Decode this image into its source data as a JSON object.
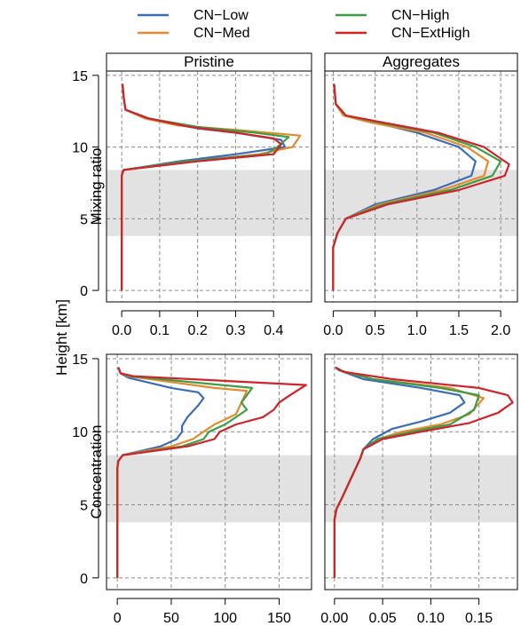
{
  "legend": {
    "position": "top",
    "items": [
      {
        "label": "CN−Low",
        "color": "#3A6DB5"
      },
      {
        "label": "CN−High",
        "color": "#3D9D46"
      },
      {
        "label": "CN−Med",
        "color": "#E58A2E"
      },
      {
        "label": "CN−ExtHigh",
        "color": "#D0232A"
      }
    ]
  },
  "y_axis_label": "Height [km]",
  "column_titles": [
    "Pristine",
    "Aggregates"
  ],
  "row_titles": [
    "Mixing ratio",
    "Concentration"
  ],
  "shaded_band_km": [
    3.8,
    8.4
  ],
  "chart_data": [
    {
      "type": "line",
      "panel": "mixing-ratio-pristine",
      "ylim": [
        -0.8,
        15.3
      ],
      "yticks": [
        "0",
        "5",
        "10",
        "15"
      ],
      "xlim": [
        -0.04,
        0.5
      ],
      "xticks": [
        "0.0",
        "0.1",
        "0.2",
        "0.3",
        "0.4"
      ],
      "xtick_values": [
        0,
        0.1,
        0.2,
        0.3,
        0.4
      ],
      "x_axis_drawn": true,
      "series": [
        {
          "name": "CN−Low",
          "color": "#3A6DB5",
          "points": [
            [
              0,
              0
            ],
            [
              0,
              8
            ],
            [
              0.005,
              8.4
            ],
            [
              0.15,
              9
            ],
            [
              0.3,
              9.5
            ],
            [
              0.43,
              10
            ],
            [
              0.42,
              10.5
            ],
            [
              0.3,
              11
            ],
            [
              0.2,
              11.3
            ],
            [
              0.07,
              12
            ],
            [
              0.01,
              12.6
            ],
            [
              0.005,
              13.5
            ],
            [
              0.002,
              14.4
            ]
          ]
        },
        {
          "name": "CN−Med",
          "color": "#E58A2E",
          "points": [
            [
              0,
              0
            ],
            [
              0,
              8
            ],
            [
              0.005,
              8.4
            ],
            [
              0.18,
              9
            ],
            [
              0.36,
              9.5
            ],
            [
              0.45,
              10
            ],
            [
              0.47,
              10.8
            ],
            [
              0.3,
              11.2
            ],
            [
              0.15,
              11.5
            ],
            [
              0.06,
              12
            ],
            [
              0.01,
              12.6
            ],
            [
              0.005,
              13.5
            ],
            [
              0.002,
              14.4
            ]
          ]
        },
        {
          "name": "CN−High",
          "color": "#3D9D46",
          "points": [
            [
              0,
              0
            ],
            [
              0,
              8
            ],
            [
              0.005,
              8.4
            ],
            [
              0.17,
              9
            ],
            [
              0.38,
              9.5
            ],
            [
              0.41,
              10
            ],
            [
              0.44,
              10.7
            ],
            [
              0.35,
              11
            ],
            [
              0.2,
              11.4
            ],
            [
              0.07,
              12
            ],
            [
              0.01,
              12.6
            ],
            [
              0.005,
              13.5
            ],
            [
              0.002,
              14.4
            ]
          ]
        },
        {
          "name": "CN−ExtHigh",
          "color": "#D0232A",
          "points": [
            [
              0,
              0
            ],
            [
              0,
              8
            ],
            [
              0.005,
              8.4
            ],
            [
              0.2,
              9
            ],
            [
              0.4,
              9.5
            ],
            [
              0.42,
              10.2
            ],
            [
              0.4,
              10.6
            ],
            [
              0.3,
              11
            ],
            [
              0.18,
              11.4
            ],
            [
              0.07,
              12
            ],
            [
              0.01,
              12.6
            ],
            [
              0.005,
              13.5
            ],
            [
              0.002,
              14.4
            ]
          ]
        }
      ]
    },
    {
      "type": "line",
      "panel": "mixing-ratio-aggregates",
      "ylim": [
        -0.8,
        15.3
      ],
      "xlim": [
        -0.1,
        2.2
      ],
      "xticks": [
        "0.0",
        "0.5",
        "1.0",
        "1.5",
        "2.0"
      ],
      "xtick_values": [
        0,
        0.5,
        1,
        1.5,
        2
      ],
      "x_axis_drawn": true,
      "series": [
        {
          "name": "CN−Low",
          "color": "#3A6DB5",
          "points": [
            [
              0,
              0
            ],
            [
              0,
              3
            ],
            [
              0.05,
              4
            ],
            [
              0.15,
              5
            ],
            [
              0.5,
              6
            ],
            [
              1.2,
              7
            ],
            [
              1.65,
              8
            ],
            [
              1.7,
              9
            ],
            [
              1.5,
              10
            ],
            [
              1,
              11
            ],
            [
              0.5,
              11.7
            ],
            [
              0.15,
              12.2
            ],
            [
              0.03,
              13
            ],
            [
              0.01,
              14.4
            ]
          ]
        },
        {
          "name": "CN−Med",
          "color": "#E58A2E",
          "points": [
            [
              0,
              0
            ],
            [
              0,
              3
            ],
            [
              0.05,
              4
            ],
            [
              0.15,
              5
            ],
            [
              0.55,
              6
            ],
            [
              1.3,
              7
            ],
            [
              1.8,
              8
            ],
            [
              1.85,
              9
            ],
            [
              1.6,
              10
            ],
            [
              1.1,
              11
            ],
            [
              0.45,
              11.7
            ],
            [
              0.12,
              12.2
            ],
            [
              0.03,
              13
            ],
            [
              0.01,
              14.4
            ]
          ]
        },
        {
          "name": "CN−High",
          "color": "#3D9D46",
          "points": [
            [
              0,
              0
            ],
            [
              0,
              3
            ],
            [
              0.05,
              4
            ],
            [
              0.15,
              5
            ],
            [
              0.6,
              6
            ],
            [
              1.4,
              7
            ],
            [
              1.9,
              8
            ],
            [
              2,
              9
            ],
            [
              1.7,
              10
            ],
            [
              1.2,
              11
            ],
            [
              0.55,
              11.7
            ],
            [
              0.15,
              12.2
            ],
            [
              0.03,
              13
            ],
            [
              0.01,
              14.4
            ]
          ]
        },
        {
          "name": "CN−ExtHigh",
          "color": "#D0232A",
          "points": [
            [
              0,
              0
            ],
            [
              0,
              3
            ],
            [
              0.05,
              4
            ],
            [
              0.15,
              5
            ],
            [
              0.65,
              6
            ],
            [
              1.5,
              7
            ],
            [
              2.05,
              8
            ],
            [
              2.1,
              8.8
            ],
            [
              1.8,
              10
            ],
            [
              1.25,
              11
            ],
            [
              0.6,
              11.7
            ],
            [
              0.15,
              12.2
            ],
            [
              0.03,
              13
            ],
            [
              0.01,
              14.4
            ]
          ]
        }
      ]
    },
    {
      "type": "line",
      "panel": "concentration-pristine",
      "ylim": [
        -0.8,
        15.3
      ],
      "yticks": [
        "0",
        "5",
        "10",
        "15"
      ],
      "xlim": [
        -10,
        180
      ],
      "xticks": [
        "0",
        "50",
        "100",
        "150"
      ],
      "xtick_values": [
        0,
        50,
        100,
        150
      ],
      "x_axis_drawn": true,
      "series": [
        {
          "name": "CN−Low",
          "color": "#3A6DB5",
          "points": [
            [
              0,
              0
            ],
            [
              0,
              7.5
            ],
            [
              1,
              8
            ],
            [
              5,
              8.4
            ],
            [
              40,
              9
            ],
            [
              55,
              9.5
            ],
            [
              60,
              10
            ],
            [
              60,
              10.4
            ],
            [
              65,
              11
            ],
            [
              75,
              11.8
            ],
            [
              80,
              12.3
            ],
            [
              75,
              12.7
            ],
            [
              50,
              13
            ],
            [
              10,
              13.7
            ],
            [
              3,
              14
            ],
            [
              1,
              14.4
            ]
          ]
        },
        {
          "name": "CN−Med",
          "color": "#E58A2E",
          "points": [
            [
              0,
              0
            ],
            [
              0,
              7.5
            ],
            [
              1,
              8
            ],
            [
              5,
              8.4
            ],
            [
              50,
              9
            ],
            [
              70,
              9.5
            ],
            [
              80,
              10
            ],
            [
              90,
              10.5
            ],
            [
              110,
              11.2
            ],
            [
              115,
              12
            ],
            [
              120,
              12.8
            ],
            [
              90,
              13
            ],
            [
              10,
              13.8
            ],
            [
              3,
              14
            ],
            [
              1,
              14.4
            ]
          ]
        },
        {
          "name": "CN−High",
          "color": "#3D9D46",
          "points": [
            [
              0,
              0
            ],
            [
              0,
              7.5
            ],
            [
              1,
              8
            ],
            [
              5,
              8.4
            ],
            [
              60,
              9
            ],
            [
              80,
              9.5
            ],
            [
              85,
              10
            ],
            [
              100,
              10.5
            ],
            [
              120,
              11.5
            ],
            [
              115,
              12
            ],
            [
              125,
              13
            ],
            [
              12,
              13.8
            ],
            [
              3,
              14
            ],
            [
              1,
              14.4
            ]
          ]
        },
        {
          "name": "CN−ExtHigh",
          "color": "#D0232A",
          "points": [
            [
              0,
              0
            ],
            [
              0,
              7.5
            ],
            [
              1,
              8
            ],
            [
              5,
              8.4
            ],
            [
              65,
              9
            ],
            [
              90,
              9.5
            ],
            [
              95,
              10
            ],
            [
              110,
              10.5
            ],
            [
              135,
              11
            ],
            [
              145,
              11.5
            ],
            [
              150,
              12
            ],
            [
              160,
              12.5
            ],
            [
              175,
              13.2
            ],
            [
              15,
              13.8
            ],
            [
              3,
              14
            ],
            [
              1,
              14.4
            ]
          ]
        }
      ]
    },
    {
      "type": "line",
      "panel": "concentration-aggregates",
      "ylim": [
        -0.8,
        15.3
      ],
      "xlim": [
        -0.01,
        0.19
      ],
      "xticks": [
        "0.00",
        "0.05",
        "0.10",
        "0.15"
      ],
      "xtick_values": [
        0,
        0.05,
        0.1,
        0.15
      ],
      "x_axis_drawn": true,
      "series": [
        {
          "name": "CN−Low",
          "color": "#3A6DB5",
          "points": [
            [
              0,
              0
            ],
            [
              0,
              4
            ],
            [
              0.002,
              4.7
            ],
            [
              0.008,
              5.5
            ],
            [
              0.015,
              6.5
            ],
            [
              0.022,
              7.5
            ],
            [
              0.027,
              8.2
            ],
            [
              0.03,
              8.8
            ],
            [
              0.04,
              9.5
            ],
            [
              0.06,
              10.2
            ],
            [
              0.09,
              10.7
            ],
            [
              0.12,
              11.3
            ],
            [
              0.135,
              12
            ],
            [
              0.13,
              12.5
            ],
            [
              0.09,
              13
            ],
            [
              0.03,
              13.6
            ],
            [
              0.005,
              14.2
            ],
            [
              0.001,
              14.4
            ]
          ]
        },
        {
          "name": "CN−Med",
          "color": "#E58A2E",
          "points": [
            [
              0,
              0
            ],
            [
              0,
              4
            ],
            [
              0.002,
              4.7
            ],
            [
              0.008,
              5.5
            ],
            [
              0.015,
              6.5
            ],
            [
              0.022,
              7.5
            ],
            [
              0.027,
              8.2
            ],
            [
              0.03,
              8.8
            ],
            [
              0.045,
              9.5
            ],
            [
              0.07,
              10
            ],
            [
              0.11,
              10.5
            ],
            [
              0.14,
              11.2
            ],
            [
              0.155,
              12.3
            ],
            [
              0.12,
              13
            ],
            [
              0.04,
              13.6
            ],
            [
              0.005,
              14.2
            ],
            [
              0.001,
              14.4
            ]
          ]
        },
        {
          "name": "CN−High",
          "color": "#3D9D46",
          "points": [
            [
              0,
              0
            ],
            [
              0,
              4
            ],
            [
              0.002,
              4.7
            ],
            [
              0.008,
              5.5
            ],
            [
              0.015,
              6.5
            ],
            [
              0.022,
              7.5
            ],
            [
              0.027,
              8.2
            ],
            [
              0.03,
              8.8
            ],
            [
              0.045,
              9.5
            ],
            [
              0.08,
              10
            ],
            [
              0.12,
              10.5
            ],
            [
              0.145,
              11.5
            ],
            [
              0.15,
              12.5
            ],
            [
              0.11,
              13
            ],
            [
              0.04,
              13.6
            ],
            [
              0.005,
              14.2
            ],
            [
              0.001,
              14.4
            ]
          ]
        },
        {
          "name": "CN−ExtHigh",
          "color": "#D0232A",
          "points": [
            [
              0,
              0
            ],
            [
              0,
              4
            ],
            [
              0.002,
              4.7
            ],
            [
              0.008,
              5.5
            ],
            [
              0.015,
              6.5
            ],
            [
              0.022,
              7.5
            ],
            [
              0.027,
              8.2
            ],
            [
              0.03,
              8.8
            ],
            [
              0.05,
              9.5
            ],
            [
              0.09,
              10
            ],
            [
              0.14,
              10.6
            ],
            [
              0.17,
              11.3
            ],
            [
              0.185,
              12
            ],
            [
              0.18,
              12.5
            ],
            [
              0.15,
              13
            ],
            [
              0.06,
              13.6
            ],
            [
              0.01,
              14.1
            ],
            [
              0.001,
              14.4
            ]
          ]
        }
      ]
    }
  ]
}
